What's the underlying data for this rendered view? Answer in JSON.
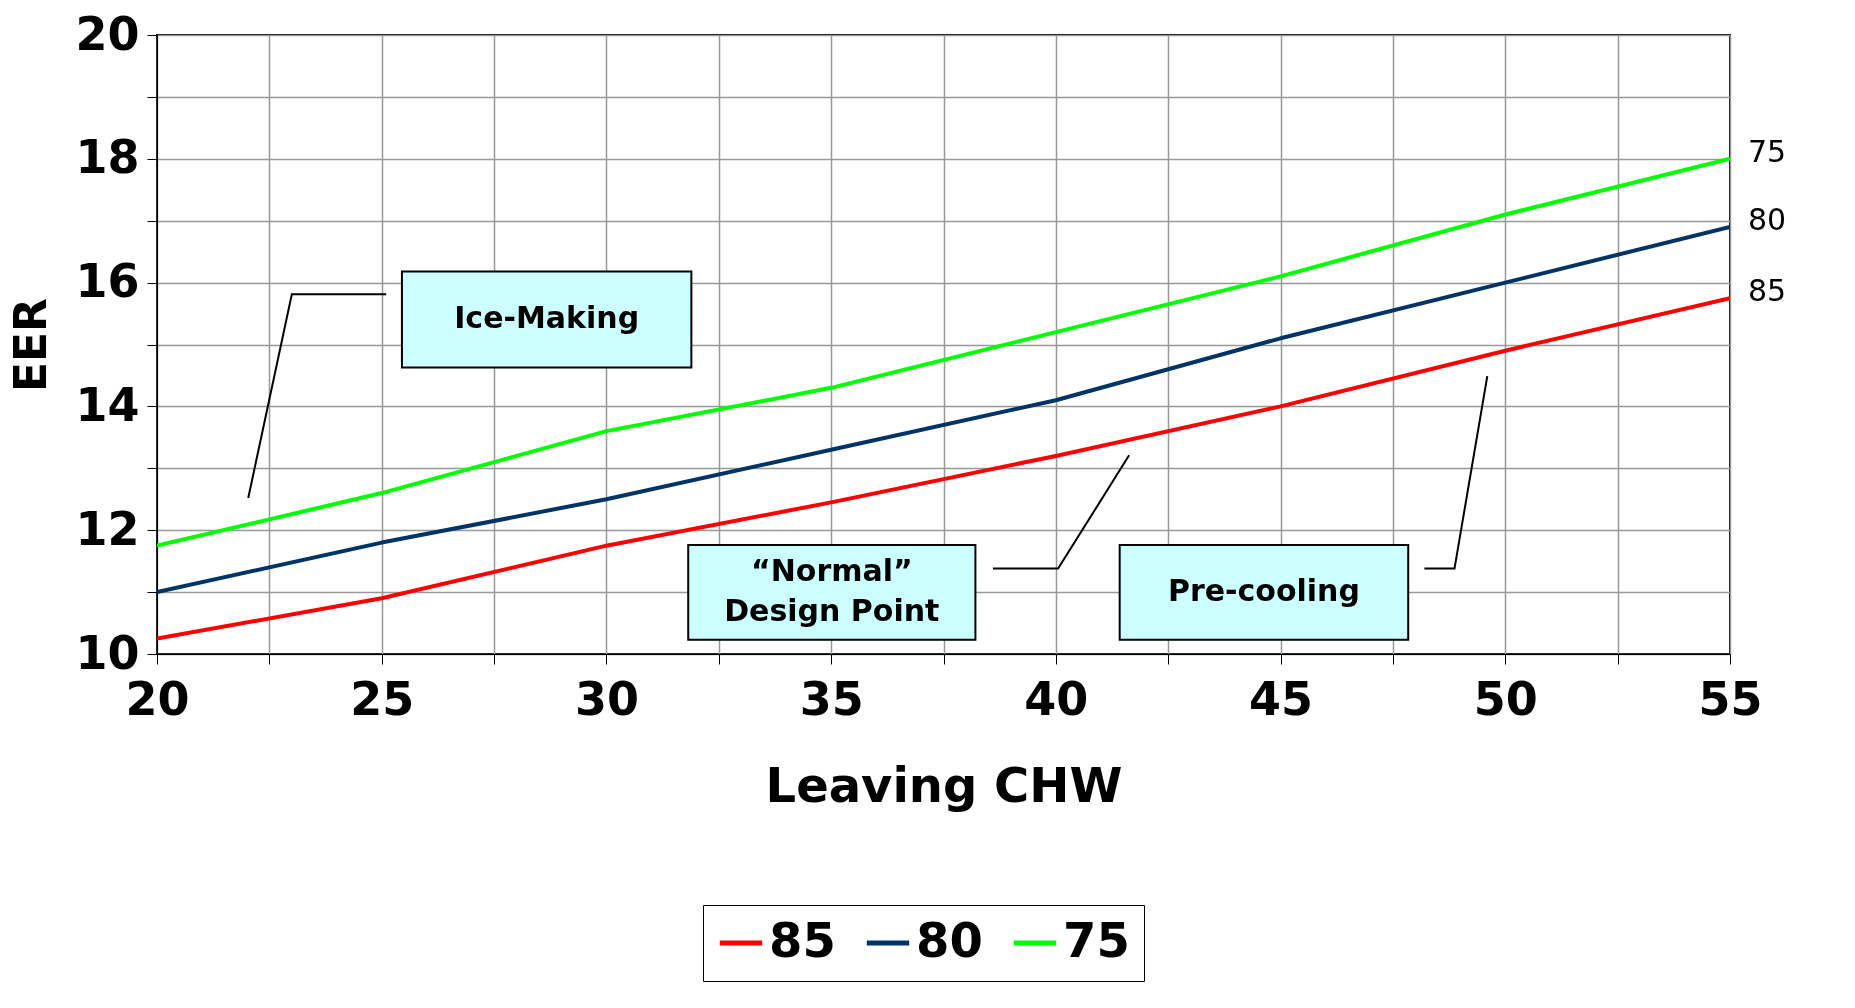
{
  "chart_data": {
    "type": "line",
    "xlabel": "Leaving CHW",
    "ylabel": "EER",
    "x": [
      20,
      25,
      30,
      35,
      40,
      45,
      50,
      55
    ],
    "series": [
      {
        "name": "85",
        "color": "#ff0000",
        "values": [
          10.25,
          10.9,
          11.75,
          12.45,
          13.2,
          14.0,
          14.9,
          15.75
        ]
      },
      {
        "name": "80",
        "color": "#003366",
        "values": [
          11.0,
          11.8,
          12.5,
          13.3,
          14.1,
          15.1,
          16.0,
          16.9
        ]
      },
      {
        "name": "75",
        "color": "#00ff00",
        "values": [
          11.75,
          12.6,
          13.6,
          14.3,
          15.2,
          16.1,
          17.1,
          18.0
        ]
      }
    ],
    "xlim": [
      20,
      55
    ],
    "ylim": [
      10,
      20
    ],
    "xticks": [
      20,
      {
        "value": 22.5,
        "label": null
      },
      25,
      {
        "value": 27.5,
        "label": null
      },
      30,
      {
        "value": 32.5,
        "label": null
      },
      35,
      {
        "value": 37.5,
        "label": null
      },
      40,
      {
        "value": 42.5,
        "label": null
      },
      45,
      {
        "value": 47.5,
        "label": null
      },
      50,
      {
        "value": 52.5,
        "label": null
      },
      55
    ],
    "yticks": [
      10,
      {
        "value": 11,
        "label": null
      },
      12,
      {
        "value": 13,
        "label": null
      },
      14,
      {
        "value": 15,
        "label": null
      },
      16,
      {
        "value": 17,
        "label": null
      },
      18,
      {
        "value": 19,
        "label": null
      },
      20
    ],
    "annotations": [
      "Ice-Making",
      "“Normal”\nDesign Point",
      "Pre-cooling"
    ],
    "grid": true,
    "legend": "bottom",
    "marker": "none",
    "line_style": "solid"
  }
}
